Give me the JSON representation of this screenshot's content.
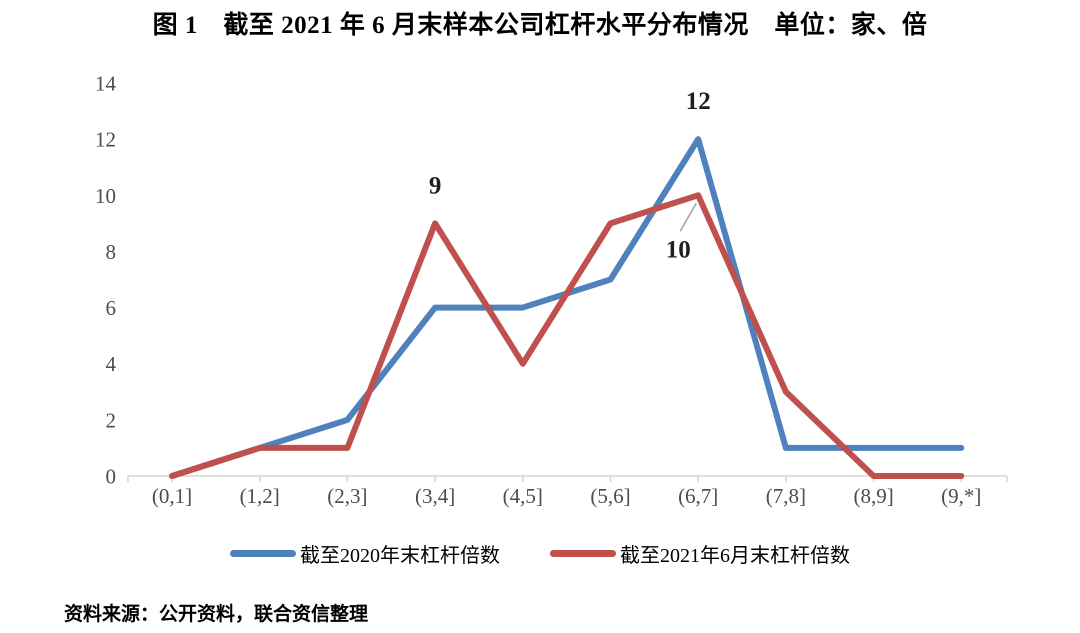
{
  "title": "图 1　截至 2021 年 6 月末样本公司杠杆水平分布情况　单位：家、倍",
  "source_note": "资料来源：公开资料，联合资信整理",
  "colors": {
    "series_2020": "#4F81BD",
    "series_2021": "#C0504D",
    "axis_line": "#D6D6D6",
    "tick_label": "#4D4D4D",
    "annotation_text": "#1F1F1F",
    "leader_line": "#A6A6A6",
    "background": "#FFFFFF"
  },
  "chart_data": {
    "type": "line",
    "title": "图 1　截至 2021 年 6 月末样本公司杠杆水平分布情况　单位：家、倍",
    "xlabel": "",
    "ylabel": "",
    "categories": [
      "(0,1]",
      "(1,2]",
      "(2,3]",
      "(3,4]",
      "(4,5]",
      "(5,6]",
      "(6,7]",
      "(7,8]",
      "(8,9]",
      "(9,*]"
    ],
    "series": [
      {
        "name": "截至2020年末杠杆倍数",
        "color": "#4F81BD",
        "values": [
          0,
          1,
          2,
          6,
          6,
          7,
          12,
          1,
          1,
          1
        ]
      },
      {
        "name": "截至2021年6月末杠杆倍数",
        "color": "#C0504D",
        "values": [
          0,
          1,
          1,
          9,
          4,
          9,
          10,
          3,
          0,
          0
        ]
      }
    ],
    "ylim": [
      0,
      14
    ],
    "yticks": [
      0,
      2,
      4,
      6,
      8,
      10,
      12,
      14
    ],
    "grid": false,
    "legend_position": "bottom",
    "annotations": [
      {
        "text": "9",
        "series": 1,
        "category_index": 3,
        "position": "above"
      },
      {
        "text": "12",
        "series": 0,
        "category_index": 6,
        "position": "above"
      },
      {
        "text": "10",
        "series": 1,
        "category_index": 6,
        "position": "below-left",
        "leader_line": true
      }
    ]
  }
}
